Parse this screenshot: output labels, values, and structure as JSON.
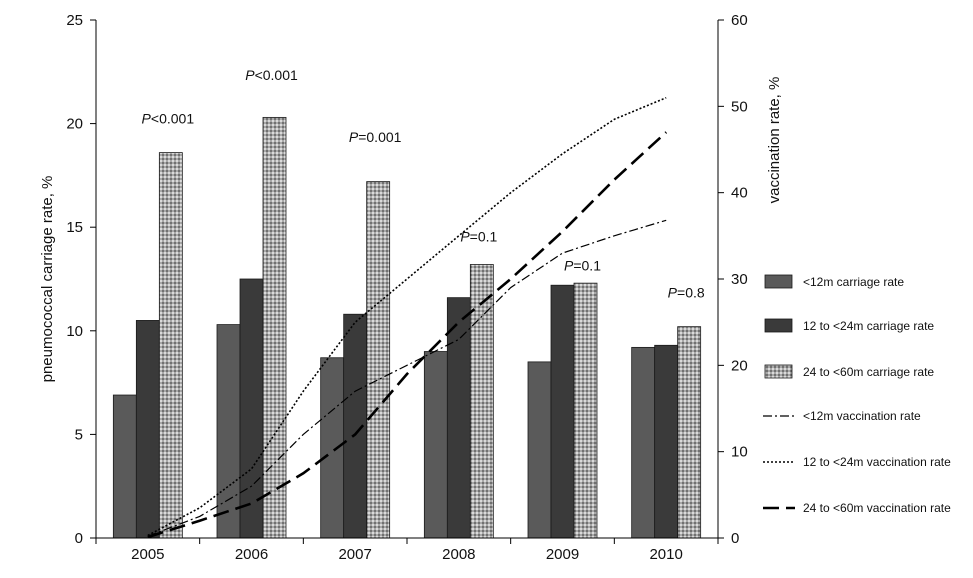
{
  "chart_data": {
    "type": "bar",
    "categories": [
      "2005",
      "2006",
      "2007",
      "2008",
      "2009",
      "2010"
    ],
    "y_left": {
      "label": "pneumococcal carriage rate, %",
      "ylim": [
        0,
        25
      ],
      "ticks": [
        "0",
        "5",
        "10",
        "15",
        "20",
        "25"
      ]
    },
    "y_right": {
      "label": "vaccination rate, %",
      "ylim": [
        0,
        60
      ],
      "ticks": [
        "0",
        "10",
        "20",
        "30",
        "40",
        "50",
        "60"
      ]
    },
    "bar_series": [
      {
        "name": "<12m carriage rate",
        "values": [
          6.9,
          10.3,
          8.7,
          9.0,
          8.5,
          9.2
        ],
        "color": "#5a5a5a",
        "pattern": "solid"
      },
      {
        "name": "12 to <24m carriage rate",
        "values": [
          10.5,
          12.5,
          10.8,
          11.6,
          12.2,
          9.3
        ],
        "color": "#3a3a3a",
        "pattern": "solid"
      },
      {
        "name": "24 to <60m carriage rate",
        "values": [
          18.6,
          20.3,
          17.2,
          13.2,
          12.3,
          10.2
        ],
        "color": "#8a8a8a",
        "pattern": "dotted"
      }
    ],
    "line_series": [
      {
        "name": "<12m vaccination rate",
        "axis": "right",
        "style": "dash-dot",
        "points": [
          [
            2005.0,
            0.2
          ],
          [
            2005.5,
            2.5
          ],
          [
            2006.0,
            6
          ],
          [
            2006.5,
            12
          ],
          [
            2007.0,
            17
          ],
          [
            2007.5,
            20
          ],
          [
            2008.0,
            23
          ],
          [
            2008.5,
            29
          ],
          [
            2009.0,
            33
          ],
          [
            2009.5,
            35
          ],
          [
            2010.0,
            36.8
          ]
        ]
      },
      {
        "name": "12 to <24m vaccination rate",
        "axis": "right",
        "style": "dotted",
        "points": [
          [
            2005.0,
            0.3
          ],
          [
            2005.5,
            3.5
          ],
          [
            2006.0,
            8
          ],
          [
            2006.5,
            17
          ],
          [
            2007.0,
            25
          ],
          [
            2007.5,
            30
          ],
          [
            2008.0,
            35
          ],
          [
            2008.5,
            40
          ],
          [
            2009.0,
            44.5
          ],
          [
            2009.5,
            48.5
          ],
          [
            2010.0,
            51
          ]
        ]
      },
      {
        "name": "24 to <60m vaccination rate",
        "axis": "right",
        "style": "long-dash",
        "points": [
          [
            2005.0,
            0.1
          ],
          [
            2005.5,
            2
          ],
          [
            2006.0,
            4
          ],
          [
            2006.5,
            7.5
          ],
          [
            2007.0,
            12
          ],
          [
            2007.5,
            19
          ],
          [
            2008.0,
            25
          ],
          [
            2008.5,
            30
          ],
          [
            2009.0,
            35.5
          ],
          [
            2009.5,
            41.5
          ],
          [
            2010.0,
            47
          ]
        ]
      }
    ],
    "annotations": [
      {
        "category": "2005",
        "label_prefix": "P",
        "label_rest": "<0.001",
        "y": 20.0
      },
      {
        "category": "2006",
        "label_prefix": "P",
        "label_rest": "<0.001",
        "y": 22.1
      },
      {
        "category": "2007",
        "label_prefix": "P",
        "label_rest": "=0.001",
        "y": 19.1
      },
      {
        "category": "2008",
        "label_prefix": "P",
        "label_rest": "=0.1",
        "y": 14.3
      },
      {
        "category": "2009",
        "label_prefix": "P",
        "label_rest": "=0.1",
        "y": 12.9
      },
      {
        "category": "2010",
        "label_prefix": "P",
        "label_rest": "=0.8",
        "y": 11.6
      }
    ],
    "legend": {
      "placement": "right"
    },
    "grid": false
  }
}
